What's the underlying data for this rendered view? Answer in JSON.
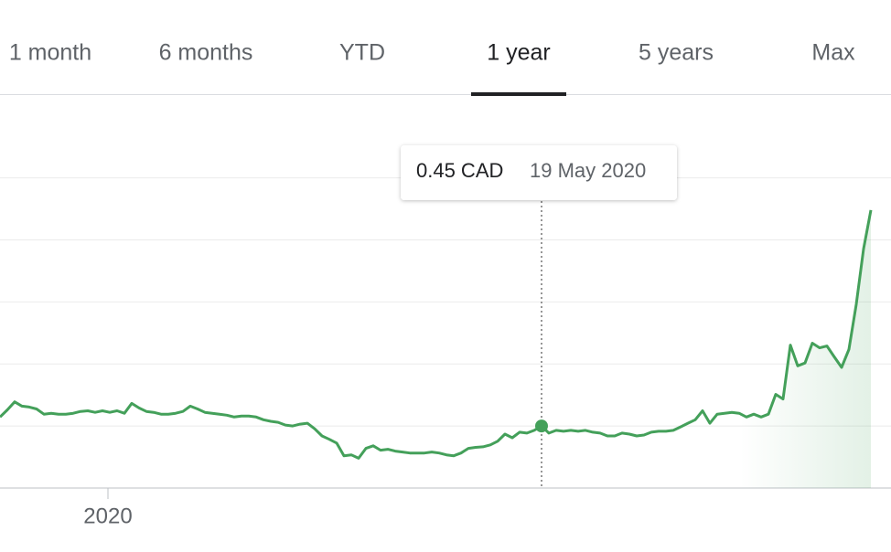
{
  "tabs": {
    "items": [
      "1 month",
      "6 months",
      "YTD",
      "1 year",
      "5 years",
      "Max"
    ],
    "active": 3
  },
  "chart_data": {
    "type": "line",
    "series": [
      {
        "color": "#44a05a",
        "values": [
          0.479,
          0.502,
          0.528,
          0.514,
          0.511,
          0.505,
          0.488,
          0.491,
          0.488,
          0.488,
          0.491,
          0.497,
          0.499,
          0.494,
          0.499,
          0.494,
          0.499,
          0.491,
          0.523,
          0.508,
          0.497,
          0.494,
          0.488,
          0.488,
          0.491,
          0.497,
          0.514,
          0.505,
          0.494,
          0.491,
          0.488,
          0.485,
          0.479,
          0.482,
          0.482,
          0.479,
          0.47,
          0.465,
          0.462,
          0.453,
          0.45,
          0.456,
          0.459,
          0.441,
          0.418,
          0.407,
          0.395,
          0.354,
          0.357,
          0.346,
          0.378,
          0.386,
          0.372,
          0.375,
          0.369,
          0.366,
          0.363,
          0.363,
          0.363,
          0.366,
          0.363,
          0.357,
          0.354,
          0.363,
          0.378,
          0.381,
          0.383,
          0.389,
          0.401,
          0.424,
          0.412,
          0.43,
          0.427,
          0.436,
          0.45,
          0.427,
          0.436,
          0.433,
          0.436,
          0.433,
          0.436,
          0.43,
          0.427,
          0.418,
          0.418,
          0.427,
          0.424,
          0.418,
          0.421,
          0.43,
          0.433,
          0.433,
          0.436,
          0.447,
          0.459,
          0.47,
          0.499,
          0.459,
          0.488,
          0.491,
          0.494,
          0.491,
          0.479,
          0.488,
          0.479,
          0.488,
          0.552,
          0.537,
          0.711,
          0.644,
          0.653,
          0.717,
          0.702,
          0.708,
          0.673,
          0.639,
          0.697,
          0.842,
          1.021,
          1.146
        ]
      }
    ],
    "xlim": [
      0,
      119
    ],
    "xticks": [
      {
        "value": 14.75,
        "label": "2020"
      }
    ],
    "ylim": [
      0.25,
      1.47
    ],
    "yticks": [
      0.25,
      0.45,
      0.65,
      0.85,
      1.05,
      1.25
    ],
    "grid": true,
    "tooltip": {
      "x": 74,
      "label": "0.45 CAD",
      "date": "19 May 2020"
    }
  }
}
